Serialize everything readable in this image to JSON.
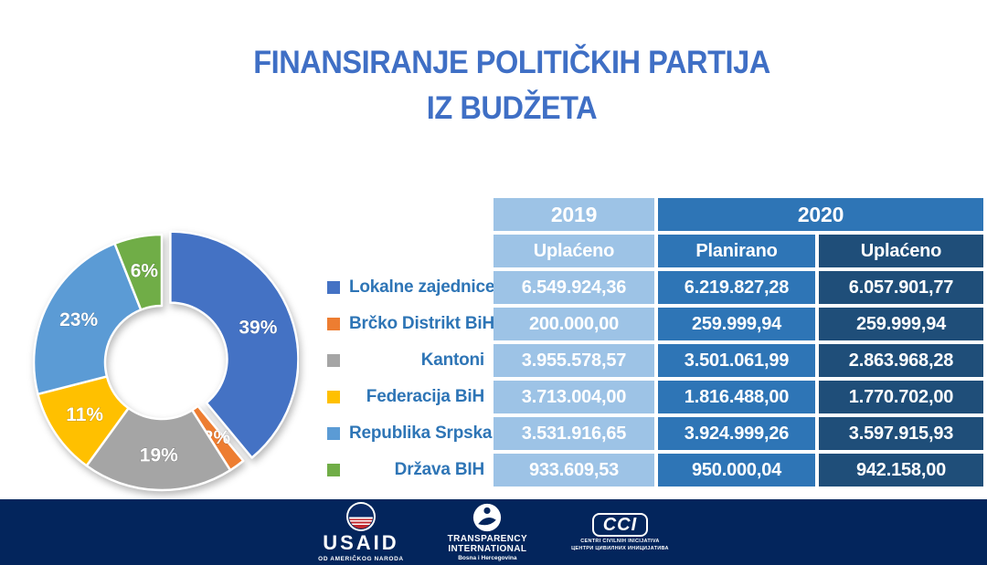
{
  "title": {
    "line1": "FINANSIRANJE POLITIČKIH PARTIJA",
    "line2": "IZ BUDŽETA"
  },
  "colors": {
    "title_blue": "#3F6FC5",
    "cell_light": "#9DC3E6",
    "cell_medium": "#2E75B6",
    "cell_dark": "#1F4E79",
    "legend_text": "#2E75B6",
    "footer_bg": "#03255C"
  },
  "chart_data": {
    "type": "pie",
    "donut": true,
    "title": "",
    "unit": "%",
    "start_angle_deg": 0,
    "exploded_index": 0,
    "labels": [
      "Lokalne zajednice",
      "Brčko Distrikt BiH",
      "Kantoni",
      "Federacija BiH",
      "Republika Srpska",
      "Država BIH"
    ],
    "values": [
      39,
      2,
      19,
      11,
      23,
      6
    ],
    "colors": [
      "#4472C4",
      "#ED7D31",
      "#A5A5A5",
      "#FFC000",
      "#5B9BD5",
      "#70AD47"
    ]
  },
  "table": {
    "year_2019": "2019",
    "year_2020": "2020",
    "col_headers": [
      "Uplaćeno",
      "Planirano",
      "Uplaćeno"
    ],
    "rows": [
      {
        "label": "Lokalne zajednice",
        "swatch": "#4472C4",
        "v2019": "6.549.924,36",
        "v2020p": "6.219.827,28",
        "v2020u": "6.057.901,77"
      },
      {
        "label": "Brčko Distrikt BiH",
        "swatch": "#ED7D31",
        "v2019": "200.000,00",
        "v2020p": "259.999,94",
        "v2020u": "259.999,94"
      },
      {
        "label": "Kantoni",
        "swatch": "#A5A5A5",
        "v2019": "3.955.578,57",
        "v2020p": "3.501.061,99",
        "v2020u": "2.863.968,28"
      },
      {
        "label": "Federacija BiH",
        "swatch": "#FFC000",
        "v2019": "3.713.004,00",
        "v2020p": "1.816.488,00",
        "v2020u": "1.770.702,00"
      },
      {
        "label": "Republika Srpska",
        "swatch": "#5B9BD5",
        "v2019": "3.531.916,65",
        "v2020p": "3.924.999,26",
        "v2020u": "3.597.915,93"
      },
      {
        "label": "Država BIH",
        "swatch": "#70AD47",
        "v2019": "933.609,53",
        "v2020p": "950.000,04",
        "v2020u": "942.158,00"
      }
    ]
  },
  "footer": {
    "usaid": {
      "name": "USAID",
      "sub": "OD AMERIČKOG NARODA"
    },
    "transparency": {
      "line1": "TRANSPARENCY",
      "line2": "INTERNATIONAL",
      "sub": "Bosna i Hercegovina"
    },
    "cci": {
      "name": "CCI",
      "sub1": "CENTRI CIVILNIH INICIJATIVA",
      "sub2": "ЦЕНТРИ ЦИВИЛНИХ ИНИЦИЈАТИВА"
    }
  }
}
